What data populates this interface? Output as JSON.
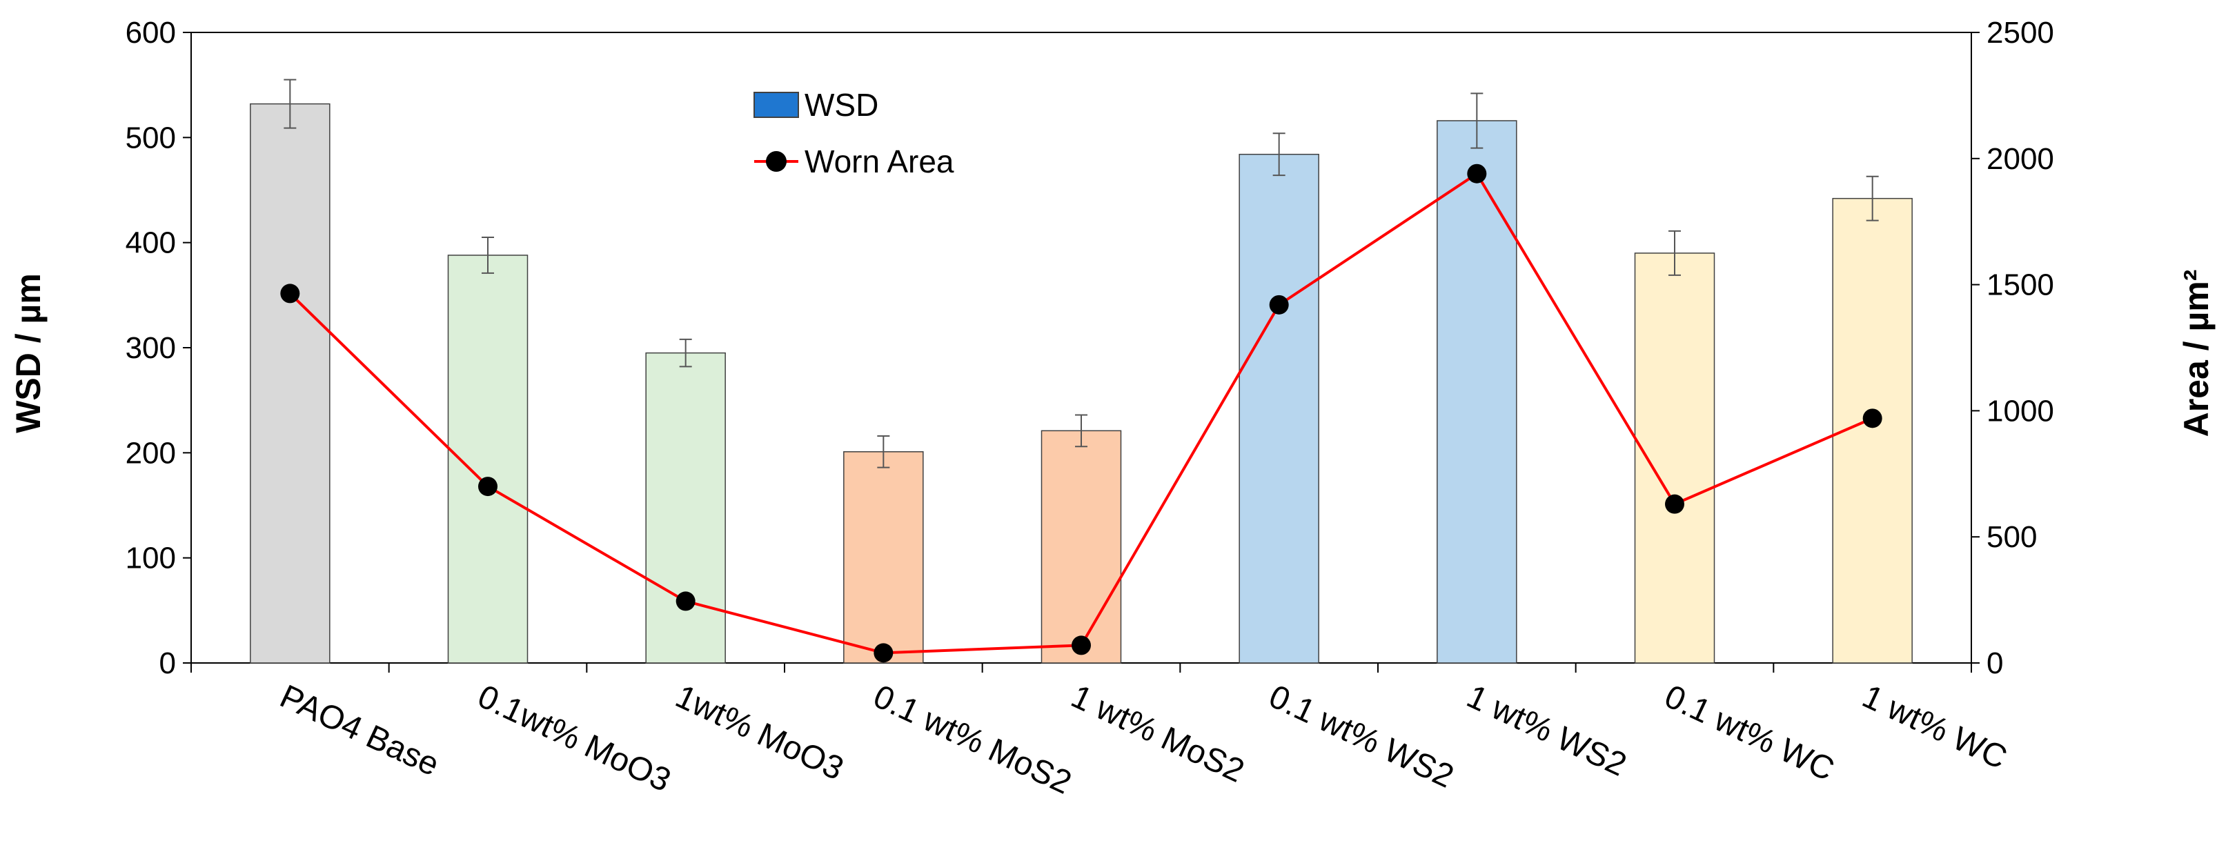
{
  "chart_data": {
    "type": "bar",
    "categories": [
      "PAO4 Base",
      "0.1wt% MoO3",
      "1wt% MoO3",
      "0.1 wt% MoS2",
      "1 wt% MoS2",
      "0.1 wt% WS2",
      "1 wt% WS2",
      "0.1 wt% WC",
      "1 wt% WC"
    ],
    "series": [
      {
        "name": "WSD",
        "type": "bar",
        "axis": "left",
        "values": [
          532,
          388,
          295,
          201,
          221,
          484,
          516,
          390,
          442
        ],
        "errors": [
          23,
          17,
          13,
          15,
          15,
          20,
          26,
          21,
          21
        ],
        "bar_colors": [
          "#d9d9d9",
          "#dcefd9",
          "#dcefd9",
          "#fccbaa",
          "#fccbaa",
          "#b7d6ee",
          "#b7d6ee",
          "#fff1cc",
          "#fff1cc"
        ],
        "legend_color": "#1f77d0"
      },
      {
        "name": "Worn Area",
        "type": "line",
        "axis": "right",
        "values": [
          1465,
          700,
          245,
          40,
          70,
          1420,
          1940,
          630,
          970
        ],
        "line_color": "#ff0000",
        "marker_color": "#000000"
      }
    ],
    "ylabel": "WSD / µm",
    "y2label": "Area / µm²",
    "ylim": [
      0,
      600
    ],
    "y2lim": [
      0,
      2500
    ],
    "yticks": [
      0,
      100,
      200,
      300,
      400,
      500,
      600
    ],
    "y2ticks": [
      0,
      500,
      1000,
      1500,
      2000,
      2500
    ],
    "grid": false,
    "legend_position": "top-center"
  }
}
